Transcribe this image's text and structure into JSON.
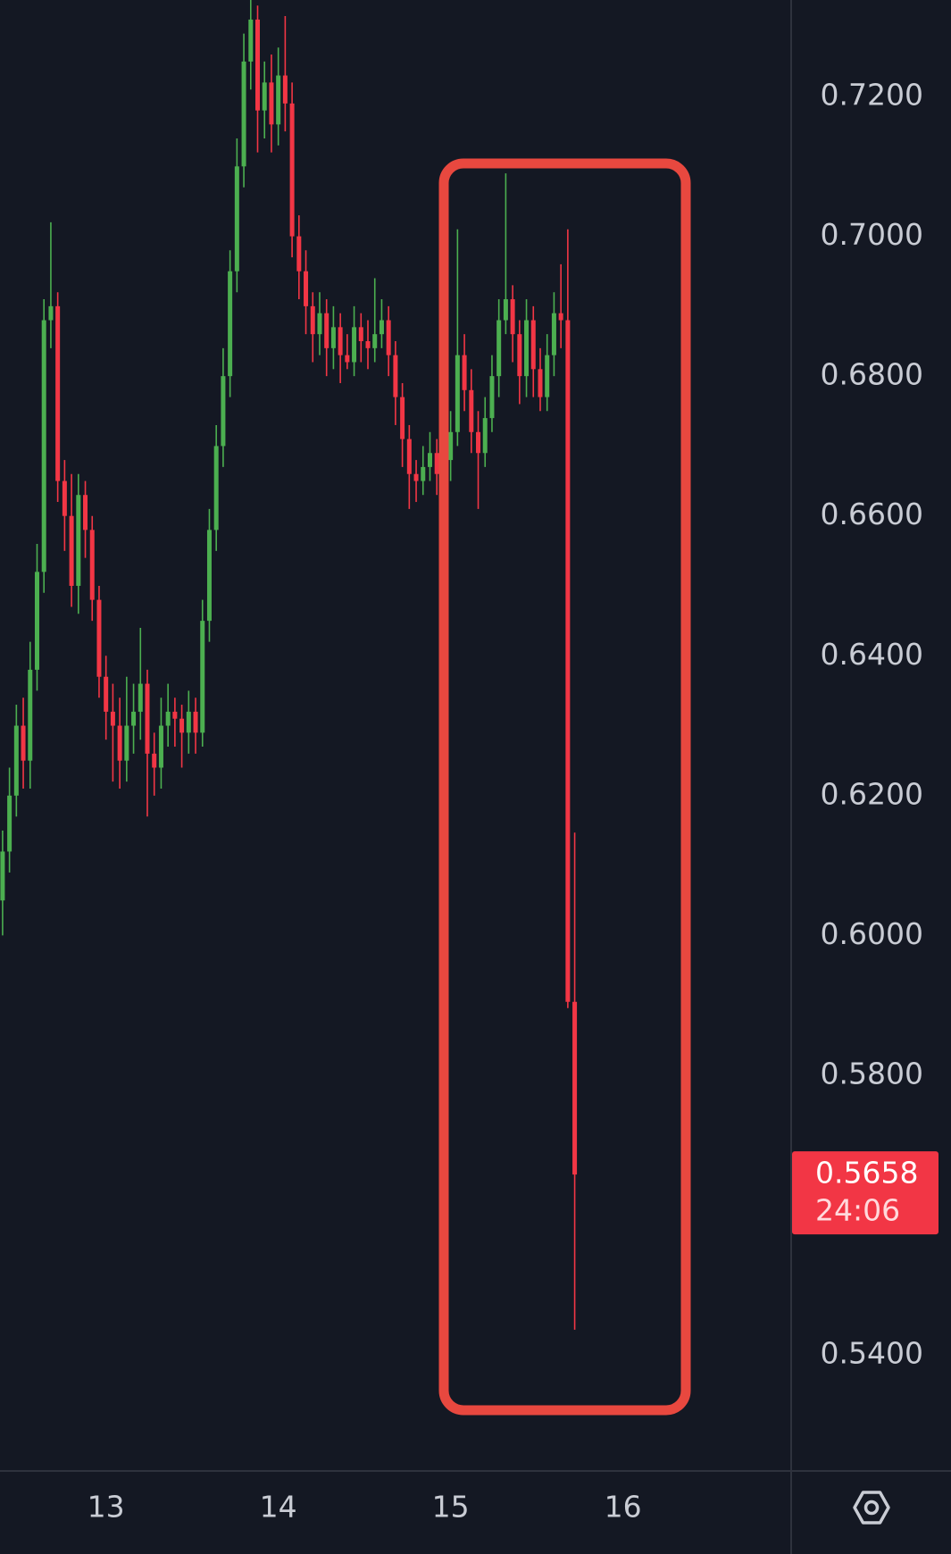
{
  "chart_data": {
    "type": "candlestick",
    "x": [
      12.4,
      12.44,
      12.48,
      12.52,
      12.56,
      12.6,
      12.64,
      12.68,
      12.72,
      12.76,
      12.8,
      12.84,
      12.88,
      12.92,
      12.96,
      13,
      13.04,
      13.08,
      13.12,
      13.16,
      13.2,
      13.24,
      13.28,
      13.32,
      13.36,
      13.4,
      13.44,
      13.48,
      13.52,
      13.56,
      13.6,
      13.64,
      13.68,
      13.72,
      13.76,
      13.8,
      13.84,
      13.88,
      13.92,
      13.96,
      14,
      14.04,
      14.08,
      14.12,
      14.16,
      14.2,
      14.24,
      14.28,
      14.32,
      14.36,
      14.4,
      14.44,
      14.48,
      14.52,
      14.56,
      14.6,
      14.64,
      14.68,
      14.72,
      14.76,
      14.8,
      14.84,
      14.88,
      14.92,
      14.96,
      15,
      15.04,
      15.08,
      15.12,
      15.16,
      15.2,
      15.24,
      15.28,
      15.32,
      15.36,
      15.4,
      15.44,
      15.48,
      15.52,
      15.56,
      15.6,
      15.64,
      15.68,
      15.72
    ],
    "open": [
      0.605,
      0.612,
      0.62,
      0.63,
      0.625,
      0.638,
      0.652,
      0.688,
      0.69,
      0.665,
      0.66,
      0.65,
      0.663,
      0.658,
      0.648,
      0.637,
      0.632,
      0.63,
      0.625,
      0.63,
      0.632,
      0.636,
      0.626,
      0.624,
      0.63,
      0.632,
      0.631,
      0.629,
      0.632,
      0.629,
      0.645,
      0.658,
      0.67,
      0.68,
      0.695,
      0.71,
      0.725,
      0.731,
      0.718,
      0.722,
      0.716,
      0.723,
      0.719,
      0.7,
      0.695,
      0.69,
      0.686,
      0.689,
      0.684,
      0.687,
      0.683,
      0.682,
      0.687,
      0.685,
      0.684,
      0.686,
      0.688,
      0.683,
      0.677,
      0.671,
      0.666,
      0.665,
      0.667,
      0.669,
      0.666,
      0.668,
      0.672,
      0.683,
      0.678,
      0.672,
      0.669,
      0.674,
      0.68,
      0.688,
      0.691,
      0.686,
      0.68,
      0.688,
      0.681,
      0.677,
      0.683,
      0.689,
      0.688,
      0.5905
    ],
    "high": [
      0.615,
      0.624,
      0.633,
      0.634,
      0.642,
      0.656,
      0.691,
      0.702,
      0.692,
      0.668,
      0.666,
      0.666,
      0.665,
      0.66,
      0.65,
      0.64,
      0.636,
      0.634,
      0.637,
      0.636,
      0.644,
      0.638,
      0.629,
      0.634,
      0.636,
      0.634,
      0.633,
      0.635,
      0.634,
      0.648,
      0.661,
      0.673,
      0.684,
      0.698,
      0.714,
      0.729,
      0.7338,
      0.733,
      0.725,
      0.726,
      0.727,
      0.7315,
      0.722,
      0.703,
      0.698,
      0.692,
      0.692,
      0.691,
      0.69,
      0.689,
      0.686,
      0.69,
      0.689,
      0.688,
      0.694,
      0.691,
      0.69,
      0.685,
      0.679,
      0.673,
      0.668,
      0.67,
      0.672,
      0.671,
      0.671,
      0.675,
      0.701,
      0.686,
      0.681,
      0.675,
      0.677,
      0.683,
      0.691,
      0.709,
      0.693,
      0.688,
      0.691,
      0.69,
      0.684,
      0.686,
      0.692,
      0.696,
      0.701,
      0.6147
    ],
    "low": [
      0.6,
      0.609,
      0.617,
      0.621,
      0.621,
      0.635,
      0.649,
      0.684,
      0.662,
      0.655,
      0.647,
      0.646,
      0.654,
      0.645,
      0.634,
      0.628,
      0.622,
      0.621,
      0.622,
      0.626,
      0.628,
      0.617,
      0.62,
      0.621,
      0.627,
      0.627,
      0.624,
      0.626,
      0.626,
      0.627,
      0.642,
      0.655,
      0.667,
      0.677,
      0.692,
      0.707,
      0.721,
      0.712,
      0.714,
      0.712,
      0.713,
      0.715,
      0.697,
      0.691,
      0.686,
      0.682,
      0.683,
      0.68,
      0.681,
      0.679,
      0.681,
      0.68,
      0.682,
      0.681,
      0.682,
      0.684,
      0.68,
      0.673,
      0.667,
      0.661,
      0.662,
      0.663,
      0.665,
      0.663,
      0.664,
      0.665,
      0.67,
      0.675,
      0.669,
      0.661,
      0.667,
      0.672,
      0.677,
      0.686,
      0.682,
      0.676,
      0.677,
      0.677,
      0.675,
      0.675,
      0.68,
      0.684,
      0.5896,
      0.5436
    ],
    "close": [
      0.612,
      0.62,
      0.63,
      0.625,
      0.638,
      0.652,
      0.688,
      0.69,
      0.665,
      0.66,
      0.65,
      0.663,
      0.658,
      0.648,
      0.637,
      0.632,
      0.63,
      0.625,
      0.63,
      0.632,
      0.636,
      0.626,
      0.624,
      0.63,
      0.632,
      0.631,
      0.629,
      0.632,
      0.629,
      0.645,
      0.658,
      0.67,
      0.68,
      0.695,
      0.71,
      0.725,
      0.731,
      0.718,
      0.722,
      0.716,
      0.723,
      0.719,
      0.7,
      0.695,
      0.69,
      0.686,
      0.689,
      0.684,
      0.687,
      0.683,
      0.682,
      0.687,
      0.685,
      0.684,
      0.686,
      0.688,
      0.683,
      0.677,
      0.671,
      0.666,
      0.665,
      0.667,
      0.669,
      0.666,
      0.668,
      0.672,
      0.683,
      0.678,
      0.672,
      0.669,
      0.674,
      0.68,
      0.688,
      0.691,
      0.686,
      0.68,
      0.688,
      0.681,
      0.677,
      0.683,
      0.689,
      0.688,
      0.5905,
      0.5658
    ],
    "up_color": "#4caf50",
    "down_color": "#f23645",
    "xlim": [
      12.385,
      16.971
    ],
    "xticks": [
      13,
      14,
      15,
      16
    ],
    "ylim": [
      0.5234,
      0.7338
    ],
    "yticks": [
      {
        "value": 0.72,
        "label": "0.7200"
      },
      {
        "value": 0.7,
        "label": "0.7000"
      },
      {
        "value": 0.68,
        "label": "0.6800"
      },
      {
        "value": 0.66,
        "label": "0.6600"
      },
      {
        "value": 0.64,
        "label": "0.6400"
      },
      {
        "value": 0.62,
        "label": "0.6200"
      },
      {
        "value": 0.6,
        "label": "0.6000"
      },
      {
        "value": 0.58,
        "label": "0.5800"
      },
      {
        "value": 0.54,
        "label": "0.5400"
      }
    ],
    "last_price": 0.5658,
    "countdown": "24:06"
  }
}
